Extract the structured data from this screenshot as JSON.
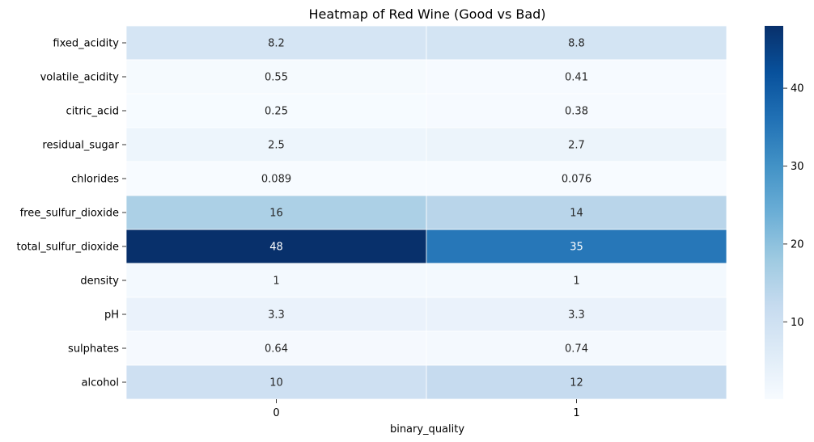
{
  "chart_data": {
    "type": "heatmap",
    "title": "Heatmap of Red Wine (Good vs Bad)",
    "xlabel": "binary_quality",
    "ylabel": "",
    "x_categories": [
      "0",
      "1"
    ],
    "y_categories": [
      "fixed_acidity",
      "volatile_acidity",
      "citric_acid",
      "residual_sugar",
      "chlorides",
      "free_sulfur_dioxide",
      "total_sulfur_dioxide",
      "density",
      "pH",
      "sulphates",
      "alcohol"
    ],
    "values": [
      [
        8.2,
        8.8
      ],
      [
        0.55,
        0.41
      ],
      [
        0.25,
        0.38
      ],
      [
        2.5,
        2.7
      ],
      [
        0.089,
        0.076
      ],
      [
        16,
        14
      ],
      [
        48,
        35
      ],
      [
        1,
        1
      ],
      [
        3.3,
        3.3
      ],
      [
        0.64,
        0.74
      ],
      [
        10,
        12
      ]
    ],
    "annotations": [
      [
        "8.2",
        "8.8"
      ],
      [
        "0.55",
        "0.41"
      ],
      [
        "0.25",
        "0.38"
      ],
      [
        "2.5",
        "2.7"
      ],
      [
        "0.089",
        "0.076"
      ],
      [
        "16",
        "14"
      ],
      [
        "48",
        "35"
      ],
      [
        "1",
        "1"
      ],
      [
        "3.3",
        "3.3"
      ],
      [
        "0.64",
        "0.74"
      ],
      [
        "10",
        "12"
      ]
    ],
    "colormap": "Blues",
    "colormap_stops": [
      "#f7fbff",
      "#deebf7",
      "#c6dbef",
      "#9ecae1",
      "#6baed6",
      "#4292c6",
      "#2171b5",
      "#08519c",
      "#08306b"
    ],
    "color_range": [
      0.076,
      48
    ],
    "colorbar_ticks": [
      10,
      20,
      30,
      40
    ],
    "grid_line_color": "#ffffff"
  }
}
